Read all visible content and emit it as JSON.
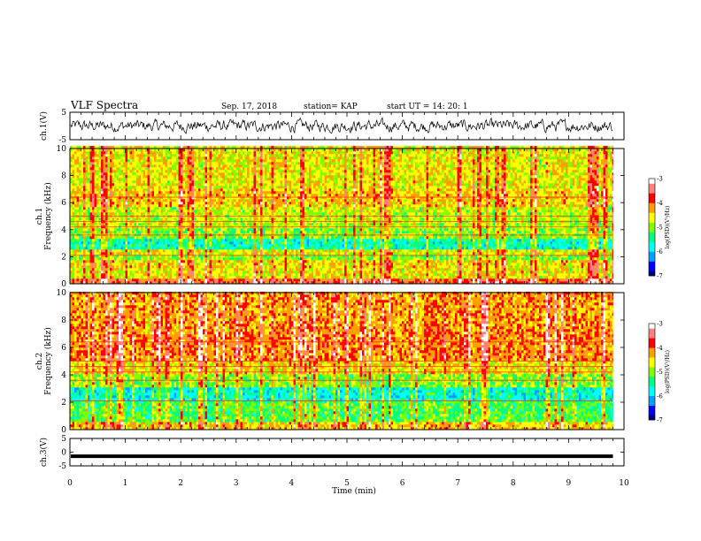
{
  "header": {
    "title": "VLF Spectra",
    "date": "Sep. 17, 2018",
    "station": "station= KAP",
    "start": "start  UT =   14: 20: 1"
  },
  "chart_data": [
    {
      "type": "line",
      "panel": "waveform-ch1",
      "ylabel": "ch.1(V)",
      "xlim": [
        0,
        10
      ],
      "ylim": [
        -5,
        5
      ],
      "yticks": [
        "5",
        "-5"
      ],
      "note_series": "noisy waveform, values roughly between -2.5 and 2.5 V over 0 to 9.8 min"
    },
    {
      "type": "heatmap",
      "panel": "spectrogram-ch1",
      "ylabel": "ch.1\nFrequency  (kHz)",
      "xlim": [
        0,
        10
      ],
      "ylim": [
        0,
        10
      ],
      "yticks": [
        "0",
        "2",
        "4",
        "6",
        "8",
        "10"
      ],
      "data_xmax": 9.8,
      "colorbar": {
        "label": "log(PSD)(V²/Hz)",
        "range": [
          -7,
          -3
        ],
        "ticks": [
          "-3",
          "-4",
          "-5",
          "-6",
          "-7"
        ]
      },
      "band_levels": [
        [
          0.0,
          0.3,
          -3.8
        ],
        [
          0.3,
          1.0,
          -4.6
        ],
        [
          1.0,
          1.6,
          -4.5
        ],
        [
          1.6,
          2.0,
          -5.0
        ],
        [
          2.0,
          2.5,
          -4.6
        ],
        [
          2.5,
          3.3,
          -5.6
        ],
        [
          3.3,
          4.0,
          -5.0
        ],
        [
          4.0,
          5.5,
          -4.8
        ],
        [
          5.5,
          7.0,
          -4.4
        ],
        [
          7.0,
          10.0,
          -4.6
        ]
      ]
    },
    {
      "type": "heatmap",
      "panel": "spectrogram-ch2",
      "ylabel": "ch.2\nFrequency  (kHz)",
      "xlim": [
        0,
        10
      ],
      "ylim": [
        0,
        10
      ],
      "yticks": [
        "0",
        "2",
        "4",
        "6",
        "8",
        "10"
      ],
      "data_xmax": 9.8,
      "colorbar": {
        "label": "log(PSD)(V²/Hz)",
        "range": [
          -7,
          -3
        ],
        "ticks": [
          "-3",
          "-4",
          "-5",
          "-6",
          "-7"
        ]
      },
      "band_levels": [
        [
          0.0,
          0.5,
          -4.4
        ],
        [
          0.5,
          2.0,
          -5.2
        ],
        [
          2.0,
          3.0,
          -5.7
        ],
        [
          3.0,
          4.0,
          -5.0
        ],
        [
          4.0,
          5.0,
          -4.5
        ],
        [
          5.0,
          7.0,
          -4.1
        ],
        [
          7.0,
          10.0,
          -4.2
        ]
      ]
    },
    {
      "type": "line",
      "panel": "waveform-ch3",
      "ylabel": "ch.3(V)",
      "xlim": [
        0,
        10
      ],
      "ylim": [
        -5,
        5
      ],
      "yticks": [
        "5",
        "0",
        "-5"
      ],
      "note_series": "flat line at about -1.5 V from 0 to 9.8 min",
      "level": -1.5
    }
  ],
  "xaxis": {
    "label": "Time  (min)",
    "ticks": [
      "0",
      "1",
      "2",
      "3",
      "4",
      "5",
      "6",
      "7",
      "8",
      "9",
      "10"
    ]
  },
  "colormap": [
    "#000080",
    "#0000ff",
    "#00a0ff",
    "#00ffff",
    "#00ff80",
    "#80ff00",
    "#ffff00",
    "#ffa000",
    "#ff0000",
    "#ff8080",
    "#ffffff"
  ]
}
